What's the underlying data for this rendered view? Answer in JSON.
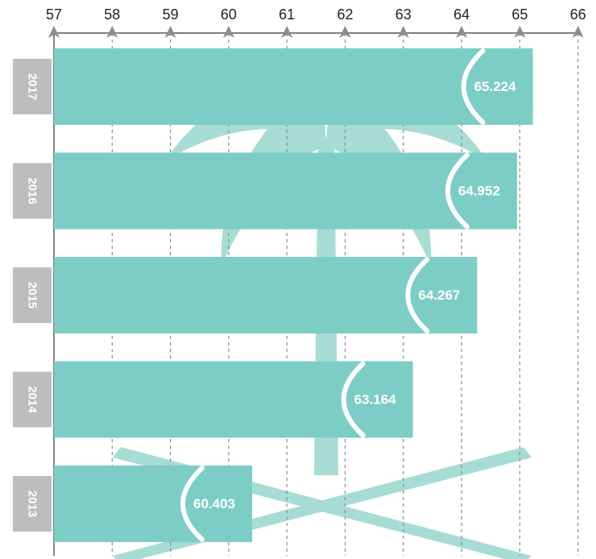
{
  "chart_data": {
    "type": "bar",
    "orientation": "horizontal",
    "categories": [
      "2017",
      "2016",
      "2015",
      "2014",
      "2013"
    ],
    "values": [
      65.224,
      64.952,
      64.267,
      63.164,
      60.403
    ],
    "value_labels": [
      "65.224",
      "64.952",
      "64.267",
      "63.164",
      "60.403"
    ],
    "xticks": [
      "57",
      "58",
      "59",
      "60",
      "61",
      "62",
      "63",
      "64",
      "65",
      "66"
    ],
    "xlim": [
      57,
      66
    ],
    "xaxis_position": "top",
    "grid": "vertical dashed",
    "title": "",
    "xlabel": "",
    "ylabel": ""
  },
  "colors": {
    "bar": "#7ccdc5",
    "year_box": "#bcbdbf",
    "axis": "#555555",
    "grid": "#8a8a8a",
    "watermark": "#e4f5f1"
  },
  "watermark_icon": "palm-tree-crossed-swords-icon"
}
